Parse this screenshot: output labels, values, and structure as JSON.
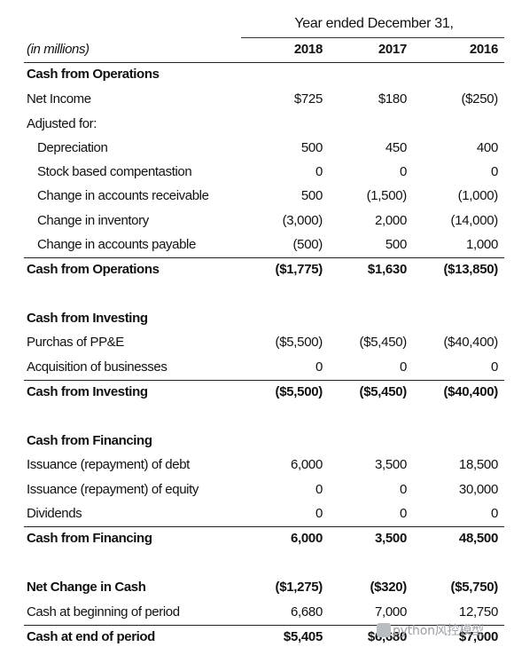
{
  "header": {
    "period": "Year ended December 31,",
    "units": "(in millions)",
    "years": [
      "2018",
      "2017",
      "2016"
    ]
  },
  "rows": [
    {
      "label": "Cash from Operations",
      "values": [
        "",
        "",
        ""
      ],
      "bold": true
    },
    {
      "label": "Net Income",
      "values": [
        "$725",
        "$180",
        "($250)"
      ]
    },
    {
      "label": "Adjusted for:",
      "values": [
        "",
        "",
        ""
      ]
    },
    {
      "label": "Depreciation",
      "values": [
        "500",
        "450",
        "400"
      ],
      "indent": true
    },
    {
      "label": "Stock based compentastion",
      "values": [
        "0",
        "0",
        "0"
      ],
      "indent": true
    },
    {
      "label": "Change in accounts receivable",
      "values": [
        "500",
        "(1,500)",
        "(1,000)"
      ],
      "indent": true
    },
    {
      "label": "Change in inventory",
      "values": [
        "(3,000)",
        "2,000",
        "(14,000)"
      ],
      "indent": true
    },
    {
      "label": "Change in accounts payable",
      "values": [
        "(500)",
        "500",
        "1,000"
      ],
      "indent": true
    },
    {
      "label": "Cash from Operations",
      "values": [
        "($1,775)",
        "$1,630",
        "($13,850)"
      ],
      "bold": true
    },
    {
      "label": "Cash from Investing",
      "values": [
        "",
        "",
        ""
      ],
      "bold": true
    },
    {
      "label": "Purchas of PP&E",
      "values": [
        "($5,500)",
        "($5,450)",
        "($40,400)"
      ]
    },
    {
      "label": "Acquisition of businesses",
      "values": [
        "0",
        "0",
        "0"
      ]
    },
    {
      "label": "Cash from Investing",
      "values": [
        "($5,500)",
        "($5,450)",
        "($40,400)"
      ],
      "bold": true
    },
    {
      "label": "Cash from Financing",
      "values": [
        "",
        "",
        ""
      ],
      "bold": true
    },
    {
      "label": "Issuance (repayment) of debt",
      "values": [
        "6,000",
        "3,500",
        "18,500"
      ]
    },
    {
      "label": "Issuance (repayment) of equity",
      "values": [
        "0",
        "0",
        "30,000"
      ]
    },
    {
      "label": "Dividends",
      "values": [
        "0",
        "0",
        "0"
      ]
    },
    {
      "label": "Cash from Financing",
      "values": [
        "6,000",
        "3,500",
        "48,500"
      ],
      "bold": true
    },
    {
      "label": "Net Change in Cash",
      "values": [
        "($1,275)",
        "($320)",
        "($5,750)"
      ],
      "bold": true
    },
    {
      "label": "Cash at beginning of period",
      "values": [
        "6,680",
        "7,000",
        "12,750"
      ]
    },
    {
      "label": "Cash at end of period",
      "values": [
        "$5,405",
        "$6,680",
        "$7,000"
      ],
      "bold": true
    }
  ],
  "watermark": "python风控模型"
}
